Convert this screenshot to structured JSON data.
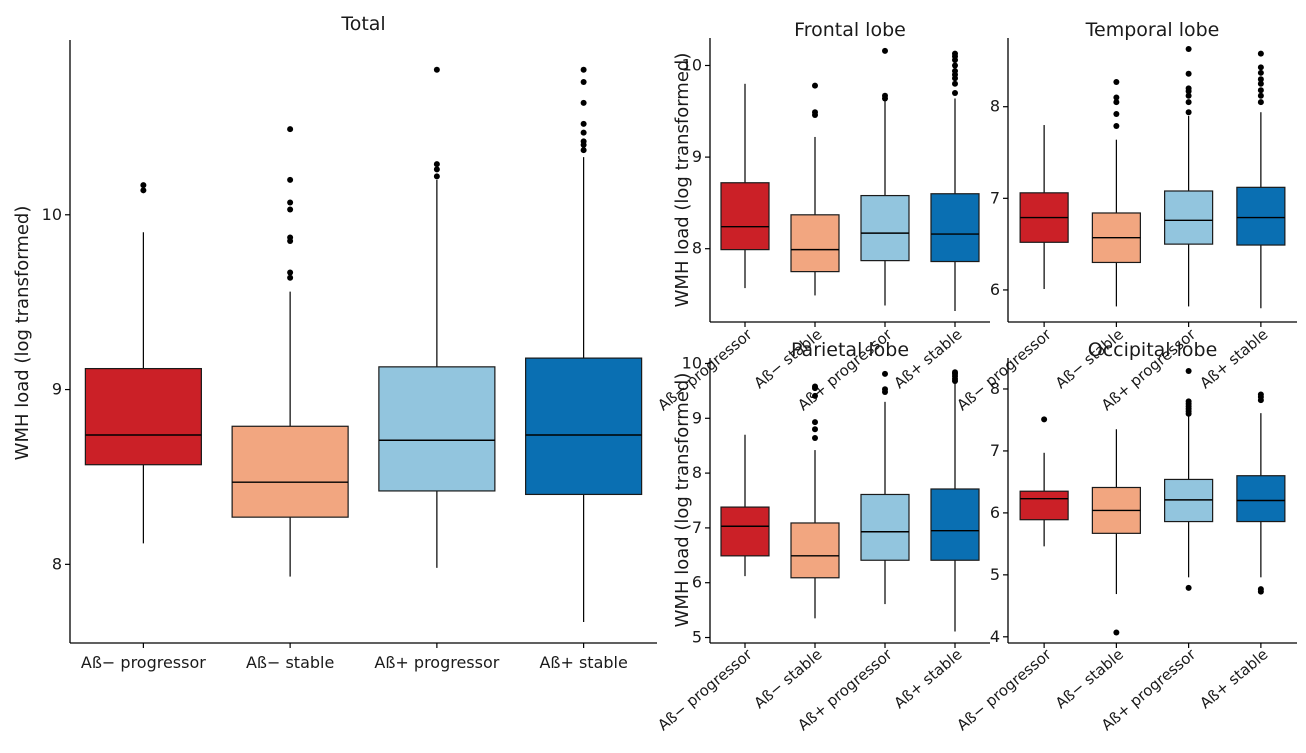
{
  "colors": {
    "Aß− progressor": "#cb2027",
    "Aß− stable": "#f2a680",
    "Aß+ progressor": "#92c5de",
    "Aß+ stable": "#0a6fb2",
    "axis": "#000000",
    "outlier": "#000000"
  },
  "chart_data": [
    {
      "type": "boxplot",
      "title": "Total",
      "ylabel": "WMH load (log transformed)",
      "ylim": [
        7.55,
        11.0
      ],
      "yticks": [
        8,
        9,
        10
      ],
      "categories": [
        "Aß− progressor",
        "Aß− stable",
        "Aß+ progressor",
        "Aß+ stable"
      ],
      "boxes": [
        {
          "low": 8.12,
          "q1": 8.57,
          "median": 8.74,
          "q3": 9.12,
          "high": 9.9,
          "outliers": [
            10.14,
            10.17
          ]
        },
        {
          "low": 7.93,
          "q1": 8.27,
          "median": 8.47,
          "q3": 8.79,
          "high": 9.56,
          "outliers": [
            9.64,
            9.67,
            9.85,
            9.87,
            10.03,
            10.07,
            10.2,
            10.49
          ]
        },
        {
          "low": 7.98,
          "q1": 8.42,
          "median": 8.71,
          "q3": 9.13,
          "high": 10.2,
          "outliers": [
            10.22,
            10.26,
            10.29,
            10.83
          ]
        },
        {
          "low": 7.67,
          "q1": 8.4,
          "median": 8.74,
          "q3": 9.18,
          "high": 10.33,
          "outliers": [
            10.37,
            10.4,
            10.42,
            10.47,
            10.52,
            10.64,
            10.76,
            10.83
          ]
        }
      ]
    },
    {
      "type": "boxplot",
      "title": "Frontal lobe",
      "ylabel": "WMH load (log transformed)",
      "ylim": [
        7.2,
        10.3
      ],
      "yticks": [
        8,
        9,
        10
      ],
      "categories": [
        "Aß− progressor",
        "Aß− stable",
        "Aß+ progressor",
        "Aß+ stable"
      ],
      "boxes": [
        {
          "low": 7.57,
          "q1": 7.99,
          "median": 8.24,
          "q3": 8.72,
          "high": 9.8,
          "outliers": []
        },
        {
          "low": 7.49,
          "q1": 7.75,
          "median": 7.99,
          "q3": 8.37,
          "high": 9.22,
          "outliers": [
            9.46,
            9.49,
            9.78
          ]
        },
        {
          "low": 7.38,
          "q1": 7.87,
          "median": 8.17,
          "q3": 8.58,
          "high": 9.62,
          "outliers": [
            9.64,
            9.67,
            10.16
          ]
        },
        {
          "low": 7.32,
          "q1": 7.86,
          "median": 8.16,
          "q3": 8.6,
          "high": 9.64,
          "outliers": [
            9.7,
            9.8,
            9.86,
            9.9,
            9.94,
            10.0,
            10.06,
            10.1,
            10.13
          ]
        }
      ]
    },
    {
      "type": "boxplot",
      "title": "Temporal lobe",
      "ylabel": "",
      "ylim": [
        5.65,
        8.75
      ],
      "yticks": [
        6,
        7,
        8
      ],
      "categories": [
        "Aß− progressor",
        "Aß− stable",
        "Aß+ progressor",
        "Aß+ stable"
      ],
      "boxes": [
        {
          "low": 6.01,
          "q1": 6.52,
          "median": 6.79,
          "q3": 7.06,
          "high": 7.8,
          "outliers": []
        },
        {
          "low": 5.82,
          "q1": 6.3,
          "median": 6.57,
          "q3": 6.84,
          "high": 7.64,
          "outliers": [
            7.79,
            7.92,
            8.05,
            8.1,
            8.27
          ]
        },
        {
          "low": 5.82,
          "q1": 6.5,
          "median": 6.76,
          "q3": 7.08,
          "high": 7.9,
          "outliers": [
            7.94,
            8.05,
            8.12,
            8.17,
            8.2,
            8.36,
            8.63
          ]
        },
        {
          "low": 5.8,
          "q1": 6.49,
          "median": 6.79,
          "q3": 7.12,
          "high": 7.94,
          "outliers": [
            8.05,
            8.12,
            8.18,
            8.25,
            8.3,
            8.37,
            8.43,
            8.58
          ]
        }
      ]
    },
    {
      "type": "boxplot",
      "title": "Parietal lobe",
      "ylabel": "WMH load (log transformed)",
      "ylim": [
        4.9,
        10.1
      ],
      "yticks": [
        5,
        6,
        7,
        8,
        9,
        10
      ],
      "categories": [
        "Aß− progressor",
        "Aß− stable",
        "Aß+ progressor",
        "Aß+ stable"
      ],
      "boxes": [
        {
          "low": 6.12,
          "q1": 6.49,
          "median": 7.03,
          "q3": 7.38,
          "high": 8.7,
          "outliers": []
        },
        {
          "low": 5.35,
          "q1": 6.09,
          "median": 6.49,
          "q3": 7.09,
          "high": 8.42,
          "outliers": [
            8.64,
            8.8,
            8.93,
            9.41,
            9.55,
            9.58
          ]
        },
        {
          "low": 5.61,
          "q1": 6.41,
          "median": 6.93,
          "q3": 7.61,
          "high": 9.3,
          "outliers": [
            9.48,
            9.53,
            9.81
          ]
        },
        {
          "low": 5.11,
          "q1": 6.41,
          "median": 6.95,
          "q3": 7.71,
          "high": 9.64,
          "outliers": [
            9.68,
            9.72,
            9.77,
            9.81,
            9.84
          ]
        }
      ]
    },
    {
      "type": "boxplot",
      "title": "Occipital lobe",
      "ylabel": "",
      "ylim": [
        3.9,
        8.5
      ],
      "yticks": [
        4,
        5,
        6,
        7,
        8
      ],
      "categories": [
        "Aß− progressor",
        "Aß− stable",
        "Aß+ progressor",
        "Aß+ stable"
      ],
      "boxes": [
        {
          "low": 5.46,
          "q1": 5.89,
          "median": 6.23,
          "q3": 6.35,
          "high": 6.97,
          "outliers": [
            7.51
          ]
        },
        {
          "low": 4.69,
          "q1": 5.67,
          "median": 6.04,
          "q3": 6.41,
          "high": 7.35,
          "outliers": [
            4.07
          ]
        },
        {
          "low": 4.96,
          "q1": 5.86,
          "median": 6.21,
          "q3": 6.54,
          "high": 7.56,
          "outliers": [
            4.79,
            7.6,
            7.64,
            7.68,
            7.72,
            7.76,
            7.8,
            8.29
          ]
        },
        {
          "low": 4.96,
          "q1": 5.86,
          "median": 6.2,
          "q3": 6.6,
          "high": 7.61,
          "outliers": [
            4.73,
            4.77,
            7.82,
            7.87,
            7.91
          ]
        }
      ]
    }
  ]
}
